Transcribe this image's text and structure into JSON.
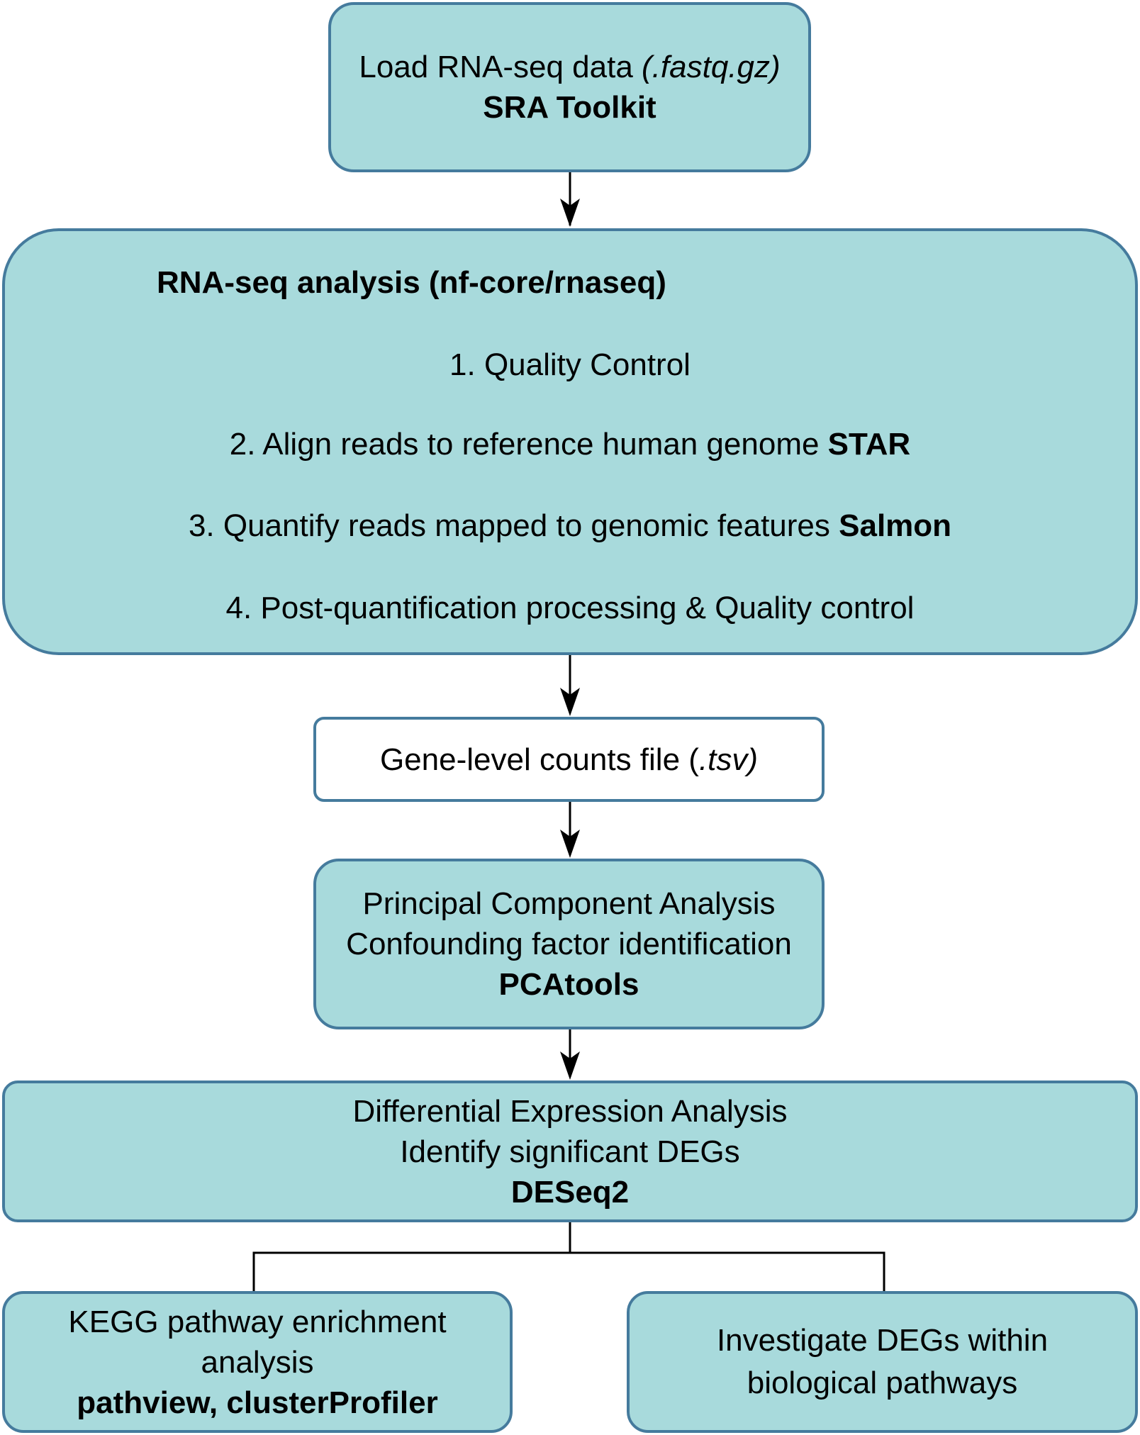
{
  "colors": {
    "fill": "#a8dadc",
    "stroke": "#457b9d",
    "white_fill": "#ffffff",
    "connector": "#000000"
  },
  "load": {
    "text": "Load RNA-seq data ",
    "ext": "(.fastq.gz)",
    "tool": "SRA Toolkit"
  },
  "rnaseq": {
    "title": "RNA-seq analysis (nf-core/rnaseq)",
    "step1": "1. Quality Control",
    "step2": "2. Align reads to reference human genome ",
    "step2_tool": "STAR",
    "step3": "3. Quantify reads mapped to genomic features ",
    "step3_tool": "Salmon",
    "step4": "4. Post-quantification processing & Quality control"
  },
  "counts": {
    "text": "Gene-level counts file (",
    "ext": ".tsv)"
  },
  "pca": {
    "line1": "Principal Component Analysis",
    "line2": "Confounding factor identification",
    "tool": "PCAtools"
  },
  "deseq": {
    "line1": "Differential Expression Analysis",
    "line2": "Identify significant DEGs",
    "tool": "DESeq2"
  },
  "kegg": {
    "line1": "KEGG pathway enrichment",
    "line2": "analysis",
    "tool": "pathview, clusterProfiler"
  },
  "investigate": {
    "line1": "Investigate DEGs within",
    "line2": "biological pathways"
  }
}
